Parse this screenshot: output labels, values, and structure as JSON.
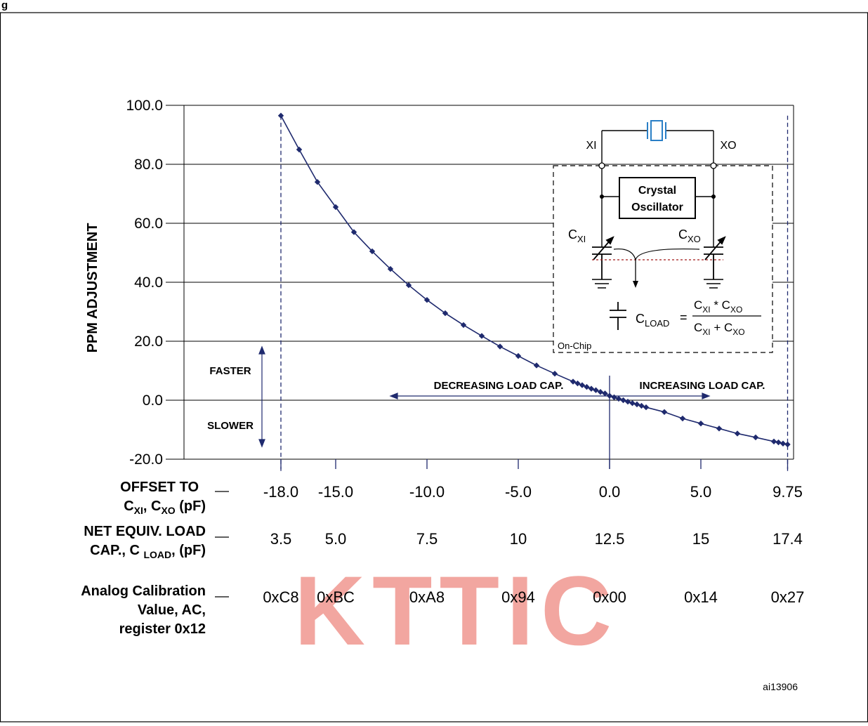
{
  "header": {
    "title_fragment": "g"
  },
  "figure_id": "ai13906",
  "watermark": "KTTIC",
  "colors": {
    "curve": "#1f2a6e",
    "axis": "#1f2a6e",
    "grid": "#000000",
    "crystal": "#2a7fc6",
    "watermark": "#f2a6a0",
    "load_line": "#a01818"
  },
  "chart_data": {
    "type": "line",
    "title": "",
    "xlabel": "",
    "ylabel": "PPM ADJUSTMENT",
    "xlim": [
      -20.0,
      10.0
    ],
    "ylim": [
      -20.0,
      100.0
    ],
    "grid": true,
    "ytick_labels": [
      "100.0",
      "80.0",
      "60.0",
      "40.0",
      "20.0",
      "0.0",
      "-20.0"
    ],
    "yticks": [
      100,
      80,
      60,
      40,
      20,
      0,
      -20
    ],
    "x_tick_positions": [
      -18.0,
      -15.0,
      -10.0,
      -5.0,
      0.0,
      5.0,
      9.75
    ],
    "series": [
      {
        "x": [
          -18.0,
          -17.0,
          -16.0,
          -15.0,
          -14.0,
          -13.0,
          -12.0,
          -11.0,
          -10.0,
          -9.0,
          -8.0,
          -7.0,
          -6.0,
          -5.0,
          -4.0,
          -3.0,
          -2.0,
          -1.75,
          -1.5,
          -1.25,
          -1.0,
          -0.75,
          -0.5,
          -0.25,
          0.0,
          0.25,
          0.5,
          0.75,
          1.0,
          1.25,
          1.5,
          1.75,
          2.0,
          3.0,
          4.0,
          5.0,
          6.0,
          7.0,
          8.0,
          9.0,
          9.25,
          9.5,
          9.75
        ],
        "y": [
          96.5,
          85.0,
          74.0,
          65.5,
          57.0,
          50.5,
          44.5,
          39.0,
          34.0,
          29.5,
          25.5,
          21.8,
          18.2,
          15.0,
          11.8,
          9.0,
          6.3,
          5.7,
          5.1,
          4.5,
          3.9,
          3.4,
          2.8,
          2.3,
          1.5,
          1.0,
          0.5,
          0.0,
          -0.5,
          -1.0,
          -1.4,
          -1.9,
          -2.4,
          -4.0,
          -6.2,
          -7.9,
          -9.6,
          -11.3,
          -12.6,
          -14.0,
          -14.3,
          -14.7,
          -15.0
        ]
      }
    ],
    "annotations": {
      "faster": "FASTER",
      "slower": "SLOWER",
      "decreasing": "DECREASING LOAD CAP.",
      "increasing": "INCREASING LOAD CAP."
    },
    "rows": [
      {
        "label_lines": [
          "OFFSET TO",
          "C",
          "XI",
          ", C",
          "XO",
          " (pF)"
        ],
        "values": [
          "-18.0",
          "-15.0",
          "-10.0",
          "-5.0",
          "0.0",
          "5.0",
          "9.75"
        ]
      },
      {
        "label_lines": [
          "NET EQUIV. LOAD",
          "CAP., C ",
          "LOAD",
          ", (pF)"
        ],
        "values": [
          "3.5",
          "5.0",
          "7.5",
          "10",
          "12.5",
          "15",
          "17.4"
        ]
      },
      {
        "label_lines": [
          "Analog Calibration",
          "Value, AC,",
          "register 0x12"
        ],
        "values": [
          "0xC8",
          "0xBC",
          "0xA8",
          "0x94",
          "0x00",
          "0x14",
          "0x27"
        ]
      }
    ]
  },
  "inset": {
    "xi": "XI",
    "xo": "XO",
    "box_line1": "Crystal",
    "box_line2": "Oscillator",
    "cxi_main": "C",
    "cxi_sub": "XI",
    "cxo_main": "C",
    "cxo_sub": "XO",
    "cload_main": "C",
    "cload_sub": "LOAD",
    "equals": "=",
    "num": [
      "C",
      "XI",
      " * C",
      "XO"
    ],
    "den": [
      "C",
      "XI",
      " + C",
      "XO"
    ],
    "on_chip": "On-Chip"
  }
}
